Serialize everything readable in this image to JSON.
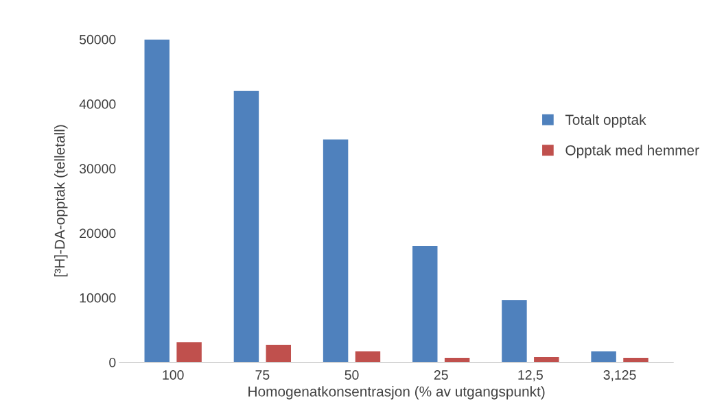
{
  "chart_data": {
    "type": "bar",
    "xlabel": "Homogenatkonsentrasjon (% av utgangspunkt)",
    "ylabel": "[³H]-DA-opptak (telletall)",
    "categories": [
      "100",
      "75",
      "50",
      "25",
      "12,5",
      "3,125"
    ],
    "series": [
      {
        "name": "Totalt opptak",
        "color": "#4f81bd",
        "values": [
          50000,
          42000,
          34500,
          18000,
          9600,
          1700
        ]
      },
      {
        "name": "Opptak med hemmer",
        "color": "#c0504d",
        "values": [
          3100,
          2700,
          1700,
          700,
          800,
          700
        ]
      }
    ],
    "ylim": [
      0,
      50000
    ],
    "yticks": [
      0,
      10000,
      20000,
      30000,
      40000,
      50000
    ],
    "grid": false,
    "legend": "right"
  }
}
